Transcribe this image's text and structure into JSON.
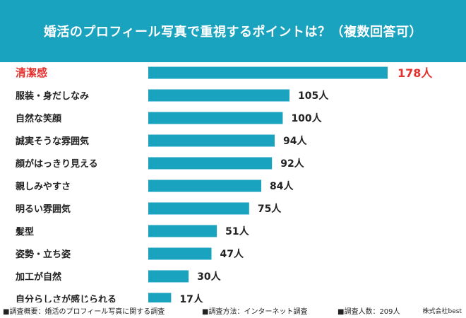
{
  "title": "婚活のプロフィール写真で重視するポイントは？（複数回答可）",
  "colors": {
    "header_bg": "#1aa3bf",
    "bar": "#1aa3bf",
    "highlight": "#e5312d",
    "text": "#222222"
  },
  "chart_data": {
    "type": "bar",
    "orientation": "horizontal",
    "title": "婚活のプロフィール写真で重視するポイントは？（複数回答可）",
    "categories": [
      "清潔感",
      "服装・身だしなみ",
      "自然な笑顔",
      "誠実そうな雰囲気",
      "顔がはっきり見える",
      "親しみやすさ",
      "明るい雰囲気",
      "髪型",
      "姿勢・立ち姿",
      "加工が自然",
      "自分らしさが感じられる"
    ],
    "values": [
      178,
      105,
      100,
      94,
      92,
      84,
      75,
      51,
      47,
      30,
      17
    ],
    "value_labels": [
      "178人",
      "105人",
      "100人",
      "94人",
      "92人",
      "84人",
      "75人",
      "51人",
      "47人",
      "30人",
      "17人"
    ],
    "highlight_index": 0,
    "grid": false,
    "legend": "none"
  },
  "footer": {
    "survey_summary": "■調査概要：婚活のプロフィール写真に関する調査",
    "survey_method": "■調査方法：インターネット調査",
    "respondents": "■調査人数：209人",
    "company": "株式会社best"
  }
}
